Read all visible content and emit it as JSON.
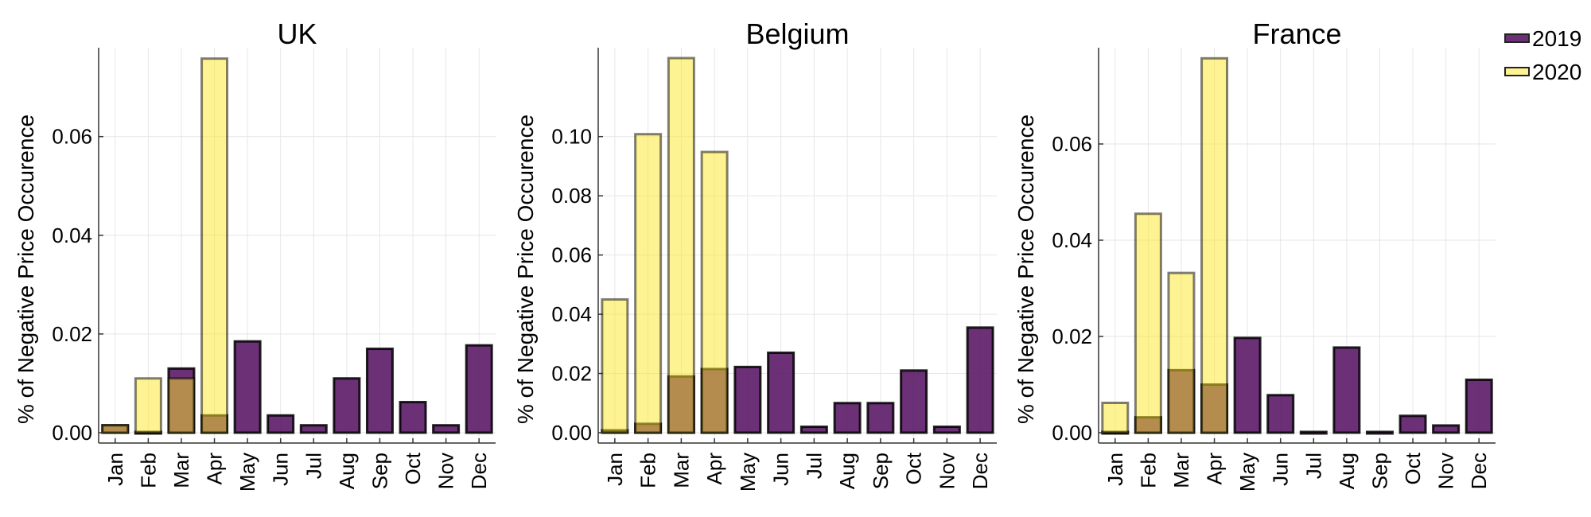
{
  "legend": {
    "entries": [
      {
        "name": "2019",
        "fill": "#5b1a66",
        "opacity": 0.9,
        "stroke": "#000000"
      },
      {
        "name": "2020",
        "fill": "#fde725",
        "opacity": 0.5,
        "stroke": "#000000"
      }
    ],
    "placement": "top-right"
  },
  "chart_data": [
    {
      "type": "bar",
      "title": "UK",
      "ylabel": "% of Negative Price Occurence",
      "categories": [
        "Jan",
        "Feb",
        "Mar",
        "Apr",
        "May",
        "Jun",
        "Jul",
        "Aug",
        "Sep",
        "Oct",
        "Nov",
        "Dec"
      ],
      "ylim": [
        0,
        0.078
      ],
      "yticks": [
        0.0,
        0.02,
        0.04,
        0.06
      ],
      "ytick_labels": [
        "0.00",
        "0.02",
        "0.04",
        "0.06"
      ],
      "grid": true,
      "series": [
        {
          "name": "2019",
          "values": [
            0.0015,
            0.0,
            0.013,
            0.0035,
            0.0185,
            0.0035,
            0.0015,
            0.011,
            0.017,
            0.0062,
            0.0015,
            0.0177
          ]
        },
        {
          "name": "2020",
          "values": [
            0.0015,
            0.011,
            0.011,
            0.0758,
            null,
            null,
            null,
            null,
            null,
            null,
            null,
            null
          ]
        }
      ]
    },
    {
      "type": "bar",
      "title": "Belgium",
      "ylabel": "% of Negative Price Occurence",
      "categories": [
        "Jan",
        "Feb",
        "Mar",
        "Apr",
        "May",
        "Jun",
        "Jul",
        "Aug",
        "Sep",
        "Oct",
        "Nov",
        "Dec"
      ],
      "ylim": [
        0,
        0.13
      ],
      "yticks": [
        0.0,
        0.02,
        0.04,
        0.06,
        0.08,
        0.1
      ],
      "ytick_labels": [
        "0.00",
        "0.02",
        "0.04",
        "0.06",
        "0.08",
        "0.10"
      ],
      "grid": true,
      "series": [
        {
          "name": "2019",
          "values": [
            0.0008,
            0.003,
            0.019,
            0.0215,
            0.0222,
            0.027,
            0.002,
            0.01,
            0.01,
            0.021,
            0.002,
            0.0355
          ]
        },
        {
          "name": "2020",
          "values": [
            0.045,
            0.1008,
            0.1265,
            0.0948,
            null,
            null,
            null,
            null,
            null,
            null,
            null,
            null
          ]
        }
      ]
    },
    {
      "type": "bar",
      "title": "France",
      "ylabel": "% of Negative Price Occurence",
      "categories": [
        "Jan",
        "Feb",
        "Mar",
        "Apr",
        "May",
        "Jun",
        "Jul",
        "Aug",
        "Sep",
        "Oct",
        "Nov",
        "Dec"
      ],
      "ylim": [
        0,
        0.08
      ],
      "yticks": [
        0.0,
        0.02,
        0.04,
        0.06
      ],
      "ytick_labels": [
        "0.00",
        "0.02",
        "0.04",
        "0.06"
      ],
      "grid": true,
      "series": [
        {
          "name": "2019",
          "values": [
            0.0,
            0.0032,
            0.013,
            0.01,
            0.0197,
            0.0078,
            0.0,
            0.0177,
            0.0,
            0.0035,
            0.0015,
            0.011
          ]
        },
        {
          "name": "2020",
          "values": [
            0.0062,
            0.0455,
            0.0332,
            0.0778,
            null,
            null,
            null,
            null,
            null,
            null,
            null,
            null
          ]
        }
      ]
    }
  ]
}
